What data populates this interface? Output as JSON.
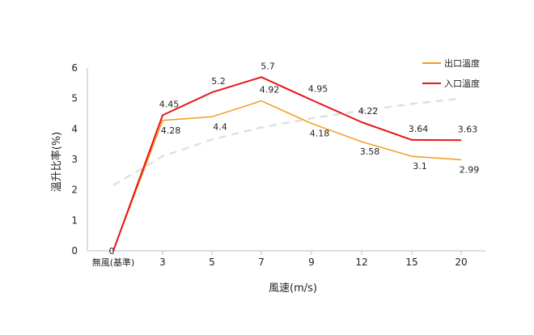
{
  "chart_data": {
    "type": "line",
    "categories": [
      "無風(基準)",
      "3",
      "5",
      "7",
      "9",
      "12",
      "15",
      "20"
    ],
    "xlabel": "風速(m/s)",
    "ylabel": "溫升比率(%)",
    "ylim": [
      0,
      6
    ],
    "yticks": [
      "0",
      "1",
      "2",
      "3",
      "4",
      "5",
      "6"
    ],
    "grid": false,
    "legend_position": "top-right",
    "series": [
      {
        "name": "出口溫度",
        "color": "#F59A1C",
        "values": [
          0,
          4.28,
          4.4,
          4.92,
          4.18,
          3.58,
          3.1,
          2.99
        ],
        "labels": [
          "0",
          "4.28",
          "4.4",
          "4.92",
          "4.18",
          "3.58",
          "3.1",
          "2.99"
        ]
      },
      {
        "name": "入口溫度",
        "color": "#E8151B",
        "values": [
          0,
          4.45,
          5.2,
          5.7,
          4.95,
          4.22,
          3.64,
          3.63
        ],
        "labels": [
          "0",
          "4.45",
          "5.2",
          "5.7",
          "4.95",
          "4.22",
          "3.64",
          "3.63"
        ]
      }
    ],
    "trendline": {
      "style": "dashed",
      "color": "#E0E0E0",
      "values": [
        2.15,
        3.1,
        3.65,
        4.05,
        4.35,
        4.6,
        4.82,
        5.0
      ]
    }
  }
}
